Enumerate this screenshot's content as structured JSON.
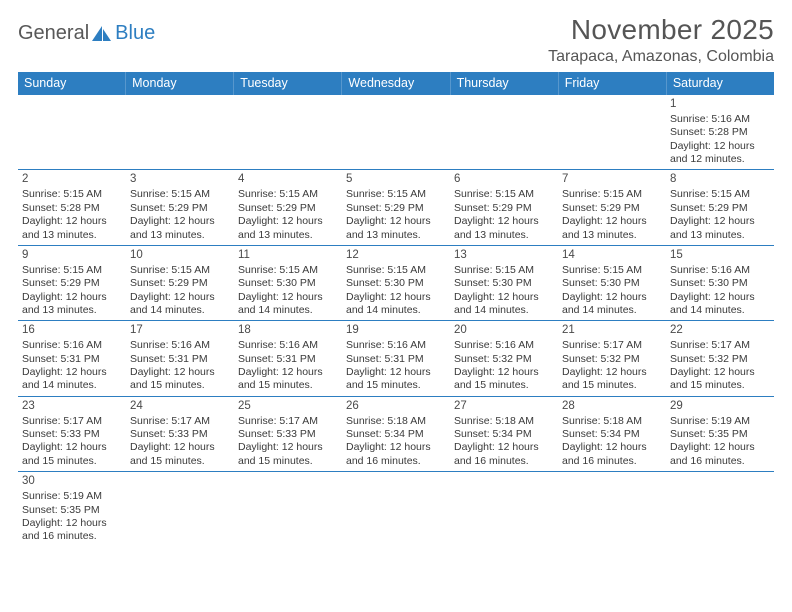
{
  "logo": {
    "part1": "General",
    "part2": "Blue"
  },
  "title": "November 2025",
  "location": "Tarapaca, Amazonas, Colombia",
  "colors": {
    "header_bg": "#2d7ec1",
    "header_text": "#ffffff",
    "border": "#2d7ec1",
    "text": "#3a3a3a",
    "title_text": "#555555"
  },
  "weekdays": [
    "Sunday",
    "Monday",
    "Tuesday",
    "Wednesday",
    "Thursday",
    "Friday",
    "Saturday"
  ],
  "sunrise_label": "Sunrise: ",
  "sunset_label": "Sunset: ",
  "daylight_label": "Daylight: ",
  "rows": [
    [
      null,
      null,
      null,
      null,
      null,
      null,
      {
        "d": "1",
        "sr": "5:16 AM",
        "ss": "5:28 PM",
        "dl": "12 hours and 12 minutes."
      }
    ],
    [
      {
        "d": "2",
        "sr": "5:15 AM",
        "ss": "5:28 PM",
        "dl": "12 hours and 13 minutes."
      },
      {
        "d": "3",
        "sr": "5:15 AM",
        "ss": "5:29 PM",
        "dl": "12 hours and 13 minutes."
      },
      {
        "d": "4",
        "sr": "5:15 AM",
        "ss": "5:29 PM",
        "dl": "12 hours and 13 minutes."
      },
      {
        "d": "5",
        "sr": "5:15 AM",
        "ss": "5:29 PM",
        "dl": "12 hours and 13 minutes."
      },
      {
        "d": "6",
        "sr": "5:15 AM",
        "ss": "5:29 PM",
        "dl": "12 hours and 13 minutes."
      },
      {
        "d": "7",
        "sr": "5:15 AM",
        "ss": "5:29 PM",
        "dl": "12 hours and 13 minutes."
      },
      {
        "d": "8",
        "sr": "5:15 AM",
        "ss": "5:29 PM",
        "dl": "12 hours and 13 minutes."
      }
    ],
    [
      {
        "d": "9",
        "sr": "5:15 AM",
        "ss": "5:29 PM",
        "dl": "12 hours and 13 minutes."
      },
      {
        "d": "10",
        "sr": "5:15 AM",
        "ss": "5:29 PM",
        "dl": "12 hours and 14 minutes."
      },
      {
        "d": "11",
        "sr": "5:15 AM",
        "ss": "5:30 PM",
        "dl": "12 hours and 14 minutes."
      },
      {
        "d": "12",
        "sr": "5:15 AM",
        "ss": "5:30 PM",
        "dl": "12 hours and 14 minutes."
      },
      {
        "d": "13",
        "sr": "5:15 AM",
        "ss": "5:30 PM",
        "dl": "12 hours and 14 minutes."
      },
      {
        "d": "14",
        "sr": "5:15 AM",
        "ss": "5:30 PM",
        "dl": "12 hours and 14 minutes."
      },
      {
        "d": "15",
        "sr": "5:16 AM",
        "ss": "5:30 PM",
        "dl": "12 hours and 14 minutes."
      }
    ],
    [
      {
        "d": "16",
        "sr": "5:16 AM",
        "ss": "5:31 PM",
        "dl": "12 hours and 14 minutes."
      },
      {
        "d": "17",
        "sr": "5:16 AM",
        "ss": "5:31 PM",
        "dl": "12 hours and 15 minutes."
      },
      {
        "d": "18",
        "sr": "5:16 AM",
        "ss": "5:31 PM",
        "dl": "12 hours and 15 minutes."
      },
      {
        "d": "19",
        "sr": "5:16 AM",
        "ss": "5:31 PM",
        "dl": "12 hours and 15 minutes."
      },
      {
        "d": "20",
        "sr": "5:16 AM",
        "ss": "5:32 PM",
        "dl": "12 hours and 15 minutes."
      },
      {
        "d": "21",
        "sr": "5:17 AM",
        "ss": "5:32 PM",
        "dl": "12 hours and 15 minutes."
      },
      {
        "d": "22",
        "sr": "5:17 AM",
        "ss": "5:32 PM",
        "dl": "12 hours and 15 minutes."
      }
    ],
    [
      {
        "d": "23",
        "sr": "5:17 AM",
        "ss": "5:33 PM",
        "dl": "12 hours and 15 minutes."
      },
      {
        "d": "24",
        "sr": "5:17 AM",
        "ss": "5:33 PM",
        "dl": "12 hours and 15 minutes."
      },
      {
        "d": "25",
        "sr": "5:17 AM",
        "ss": "5:33 PM",
        "dl": "12 hours and 15 minutes."
      },
      {
        "d": "26",
        "sr": "5:18 AM",
        "ss": "5:34 PM",
        "dl": "12 hours and 16 minutes."
      },
      {
        "d": "27",
        "sr": "5:18 AM",
        "ss": "5:34 PM",
        "dl": "12 hours and 16 minutes."
      },
      {
        "d": "28",
        "sr": "5:18 AM",
        "ss": "5:34 PM",
        "dl": "12 hours and 16 minutes."
      },
      {
        "d": "29",
        "sr": "5:19 AM",
        "ss": "5:35 PM",
        "dl": "12 hours and 16 minutes."
      }
    ],
    [
      {
        "d": "30",
        "sr": "5:19 AM",
        "ss": "5:35 PM",
        "dl": "12 hours and 16 minutes."
      },
      null,
      null,
      null,
      null,
      null,
      null
    ]
  ]
}
